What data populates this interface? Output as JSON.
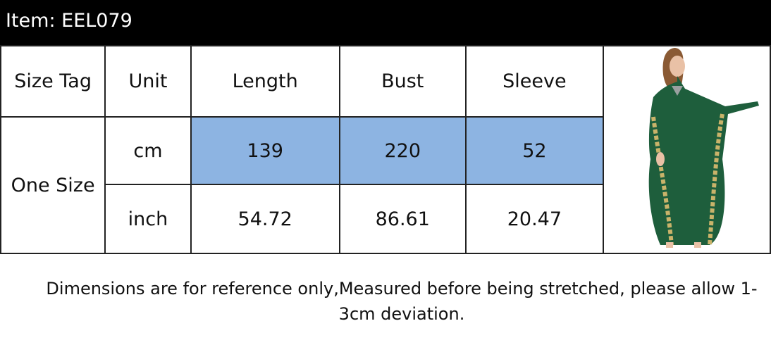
{
  "header": {
    "item": "Item: EEL079"
  },
  "table": {
    "headers": [
      "Size Tag",
      "Unit",
      "Length",
      "Bust",
      "Sleeve"
    ],
    "size": "One Size",
    "rows": [
      {
        "unit": "cm",
        "values": [
          "139",
          "220",
          "52"
        ]
      },
      {
        "unit": "inch",
        "values": [
          "54.72",
          "86.61",
          "20.47"
        ]
      }
    ],
    "highlight_color": "#8db4e2"
  },
  "image": {
    "subject": "model-in-green-kaftan-dress",
    "dress_color": "#1e5e3c"
  },
  "note": {
    "line1": "Dimensions are for reference only,Measured before being stretched, please allow 1-",
    "line2": "3cm deviation."
  }
}
